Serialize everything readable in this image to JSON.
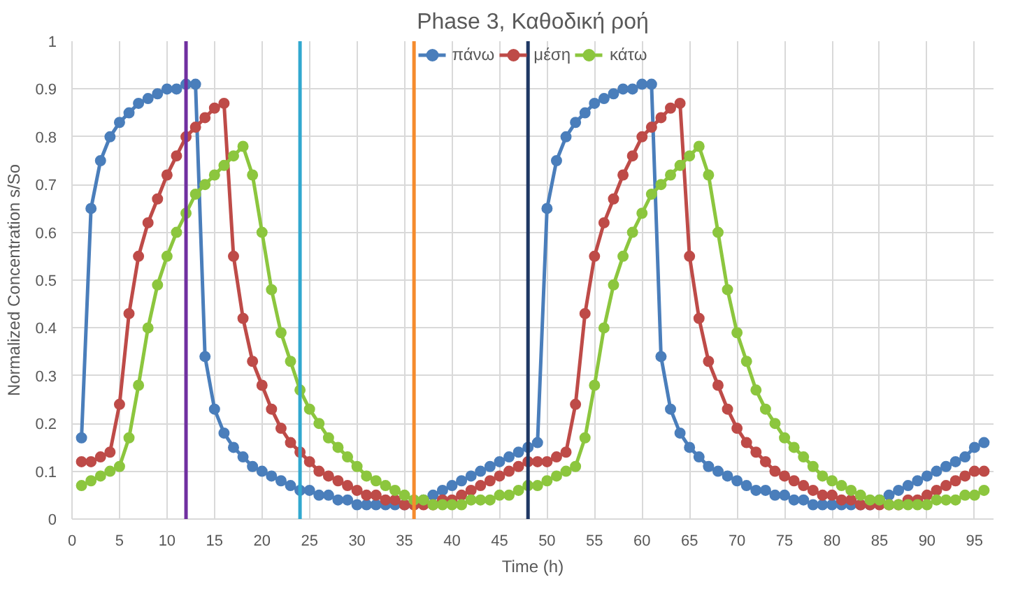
{
  "chart_data": {
    "type": "line",
    "title": "Phase 3, Καθοδική ροή",
    "xlabel": "Time (h)",
    "ylabel": "Normalized Concentration s/So",
    "x": [
      1,
      2,
      3,
      4,
      5,
      6,
      7,
      8,
      9,
      10,
      11,
      12,
      13,
      14,
      15,
      16,
      17,
      18,
      19,
      20,
      21,
      22,
      23,
      24,
      25,
      26,
      27,
      28,
      29,
      30,
      31,
      32,
      33,
      34,
      35,
      36,
      37,
      38,
      39,
      40,
      41,
      42,
      43,
      44,
      45,
      46,
      47,
      48,
      49,
      50,
      51,
      52,
      53,
      54,
      55,
      56,
      57,
      58,
      59,
      60,
      61,
      62,
      63,
      64,
      65,
      66,
      67,
      68,
      69,
      70,
      71,
      72,
      73,
      74,
      75,
      76,
      77,
      78,
      79,
      80,
      81,
      82,
      83,
      84,
      85,
      86,
      87,
      88,
      89,
      90,
      91,
      92,
      93,
      94,
      95,
      96
    ],
    "series": [
      {
        "name": "πάνω",
        "color": "#4a7ebb",
        "values": [
          0.17,
          0.65,
          0.75,
          0.8,
          0.83,
          0.85,
          0.87,
          0.88,
          0.89,
          0.9,
          0.9,
          0.91,
          0.91,
          0.34,
          0.23,
          0.18,
          0.15,
          0.13,
          0.11,
          0.1,
          0.09,
          0.08,
          0.07,
          0.06,
          0.06,
          0.05,
          0.05,
          0.04,
          0.04,
          0.03,
          0.03,
          0.03,
          0.03,
          0.03,
          0.03,
          0.03,
          0.04,
          0.05,
          0.06,
          0.07,
          0.08,
          0.09,
          0.1,
          0.11,
          0.12,
          0.13,
          0.14,
          0.15,
          0.16,
          0.65,
          0.75,
          0.8,
          0.83,
          0.85,
          0.87,
          0.88,
          0.89,
          0.9,
          0.9,
          0.91,
          0.91,
          0.34,
          0.23,
          0.18,
          0.15,
          0.13,
          0.11,
          0.1,
          0.09,
          0.08,
          0.07,
          0.06,
          0.06,
          0.05,
          0.05,
          0.04,
          0.04,
          0.03,
          0.03,
          0.03,
          0.03,
          0.03,
          0.03,
          0.03,
          0.04,
          0.05,
          0.06,
          0.07,
          0.08,
          0.09,
          0.1,
          0.11,
          0.12,
          0.13,
          0.15,
          0.16
        ]
      },
      {
        "name": "μέση",
        "color": "#be4b48",
        "values": [
          0.12,
          0.12,
          0.13,
          0.14,
          0.24,
          0.43,
          0.55,
          0.62,
          0.67,
          0.72,
          0.76,
          0.8,
          0.82,
          0.84,
          0.86,
          0.87,
          0.55,
          0.42,
          0.33,
          0.28,
          0.23,
          0.19,
          0.16,
          0.14,
          0.12,
          0.1,
          0.09,
          0.08,
          0.07,
          0.06,
          0.05,
          0.05,
          0.04,
          0.04,
          0.03,
          0.03,
          0.03,
          0.03,
          0.04,
          0.04,
          0.05,
          0.06,
          0.07,
          0.08,
          0.09,
          0.1,
          0.11,
          0.12,
          0.12,
          0.12,
          0.13,
          0.14,
          0.24,
          0.43,
          0.55,
          0.62,
          0.67,
          0.72,
          0.76,
          0.8,
          0.82,
          0.84,
          0.86,
          0.87,
          0.55,
          0.42,
          0.33,
          0.28,
          0.23,
          0.19,
          0.16,
          0.14,
          0.12,
          0.1,
          0.09,
          0.08,
          0.07,
          0.06,
          0.05,
          0.05,
          0.04,
          0.04,
          0.03,
          0.03,
          0.03,
          0.03,
          0.03,
          0.04,
          0.04,
          0.05,
          0.06,
          0.07,
          0.08,
          0.09,
          0.1,
          0.1
        ]
      },
      {
        "name": "κάτω",
        "color": "#8cc63e",
        "values": [
          0.07,
          0.08,
          0.09,
          0.1,
          0.11,
          0.17,
          0.28,
          0.4,
          0.49,
          0.55,
          0.6,
          0.64,
          0.68,
          0.7,
          0.72,
          0.74,
          0.76,
          0.78,
          0.72,
          0.6,
          0.48,
          0.39,
          0.33,
          0.27,
          0.23,
          0.2,
          0.17,
          0.15,
          0.13,
          0.11,
          0.09,
          0.08,
          0.07,
          0.06,
          0.05,
          0.04,
          0.04,
          0.03,
          0.03,
          0.03,
          0.03,
          0.04,
          0.04,
          0.04,
          0.05,
          0.05,
          0.06,
          0.07,
          0.07,
          0.08,
          0.09,
          0.1,
          0.11,
          0.17,
          0.28,
          0.4,
          0.49,
          0.55,
          0.6,
          0.64,
          0.68,
          0.7,
          0.72,
          0.74,
          0.76,
          0.78,
          0.72,
          0.6,
          0.48,
          0.39,
          0.33,
          0.27,
          0.23,
          0.2,
          0.17,
          0.15,
          0.13,
          0.11,
          0.09,
          0.08,
          0.07,
          0.06,
          0.05,
          0.04,
          0.04,
          0.03,
          0.03,
          0.03,
          0.03,
          0.03,
          0.04,
          0.04,
          0.04,
          0.05,
          0.05,
          0.06
        ]
      }
    ],
    "ref_lines": [
      {
        "axis": "x",
        "value": 12,
        "color": "#7030a0"
      },
      {
        "axis": "x",
        "value": 24,
        "color": "#31a8cf"
      },
      {
        "axis": "x",
        "value": 36,
        "color": "#f58b2d"
      },
      {
        "axis": "x",
        "value": 48,
        "color": "#1f3864"
      }
    ],
    "xlim": [
      0,
      97
    ],
    "xticks": [
      0,
      5,
      10,
      15,
      20,
      25,
      30,
      35,
      40,
      45,
      50,
      55,
      60,
      65,
      70,
      75,
      80,
      85,
      90,
      95
    ],
    "ylim": [
      0,
      1
    ],
    "yticks": [
      0,
      0.1,
      0.2,
      0.3,
      0.4,
      0.5,
      0.6,
      0.7,
      0.8,
      0.9,
      1
    ],
    "grid": true,
    "legend": "top",
    "marker": "circle",
    "line_style": "solid"
  }
}
